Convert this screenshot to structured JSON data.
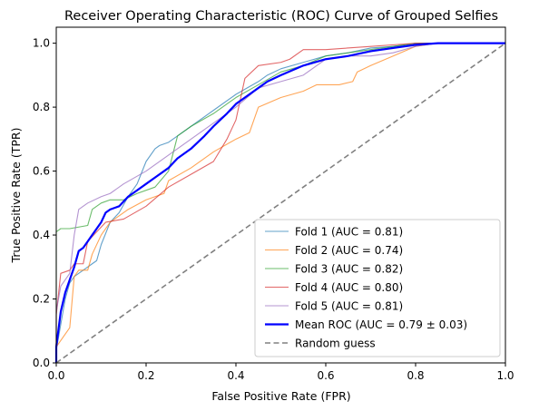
{
  "chart_data": {
    "type": "line",
    "title": "Receiver Operating Characteristic (ROC) Curve of Grouped Selfies",
    "xlabel": "False Positive Rate (FPR)",
    "ylabel": "True Positive Rate (TPR)",
    "xlim": [
      0,
      1.0
    ],
    "ylim": [
      0,
      1.05
    ],
    "xticks": [
      0.0,
      0.2,
      0.4,
      0.6,
      0.8,
      1.0
    ],
    "yticks": [
      0.0,
      0.2,
      0.4,
      0.6,
      0.8,
      1.0
    ],
    "xtick_labels": [
      "0.0",
      "0.2",
      "0.4",
      "0.6",
      "0.8",
      "1.0"
    ],
    "ytick_labels": [
      "0.0",
      "0.2",
      "0.4",
      "0.6",
      "0.8",
      "1.0"
    ],
    "grid": false,
    "legend_position": "lower-right",
    "series": [
      {
        "name": "Fold 1 (AUC = 0.81)",
        "color": "#1f77b4",
        "style": "thin",
        "points": [
          [
            0,
            0
          ],
          [
            0,
            0.04
          ],
          [
            0.01,
            0.12
          ],
          [
            0.02,
            0.2
          ],
          [
            0.03,
            0.25
          ],
          [
            0.04,
            0.27
          ],
          [
            0.05,
            0.28
          ],
          [
            0.06,
            0.29
          ],
          [
            0.07,
            0.3
          ],
          [
            0.08,
            0.31
          ],
          [
            0.09,
            0.32
          ],
          [
            0.1,
            0.37
          ],
          [
            0.12,
            0.44
          ],
          [
            0.14,
            0.47
          ],
          [
            0.16,
            0.52
          ],
          [
            0.18,
            0.56
          ],
          [
            0.2,
            0.63
          ],
          [
            0.22,
            0.67
          ],
          [
            0.23,
            0.68
          ],
          [
            0.25,
            0.69
          ],
          [
            0.27,
            0.71
          ],
          [
            0.3,
            0.74
          ],
          [
            0.35,
            0.79
          ],
          [
            0.4,
            0.84
          ],
          [
            0.45,
            0.88
          ],
          [
            0.47,
            0.9
          ],
          [
            0.5,
            0.92
          ],
          [
            0.55,
            0.94
          ],
          [
            0.6,
            0.96
          ],
          [
            0.65,
            0.97
          ],
          [
            0.7,
            0.985
          ],
          [
            0.75,
            0.99
          ],
          [
            0.8,
            1.0
          ],
          [
            1,
            1.0
          ]
        ]
      },
      {
        "name": "Fold 2 (AUC = 0.74)",
        "color": "#ff7f0e",
        "style": "thin",
        "points": [
          [
            0,
            0
          ],
          [
            0,
            0.05
          ],
          [
            0.01,
            0.07
          ],
          [
            0.03,
            0.11
          ],
          [
            0.04,
            0.27
          ],
          [
            0.05,
            0.29
          ],
          [
            0.07,
            0.29
          ],
          [
            0.08,
            0.34
          ],
          [
            0.1,
            0.4
          ],
          [
            0.12,
            0.44
          ],
          [
            0.16,
            0.48
          ],
          [
            0.2,
            0.51
          ],
          [
            0.24,
            0.53
          ],
          [
            0.25,
            0.57
          ],
          [
            0.3,
            0.61
          ],
          [
            0.35,
            0.66
          ],
          [
            0.4,
            0.7
          ],
          [
            0.43,
            0.72
          ],
          [
            0.45,
            0.8
          ],
          [
            0.5,
            0.83
          ],
          [
            0.55,
            0.85
          ],
          [
            0.58,
            0.87
          ],
          [
            0.63,
            0.87
          ],
          [
            0.66,
            0.88
          ],
          [
            0.67,
            0.91
          ],
          [
            0.7,
            0.93
          ],
          [
            0.75,
            0.96
          ],
          [
            0.8,
            0.99
          ],
          [
            0.85,
            1.0
          ],
          [
            1,
            1.0
          ]
        ]
      },
      {
        "name": "Fold 3 (AUC = 0.82)",
        "color": "#2ca02c",
        "style": "thin",
        "points": [
          [
            0,
            0
          ],
          [
            0,
            0.41
          ],
          [
            0.01,
            0.42
          ],
          [
            0.03,
            0.42
          ],
          [
            0.07,
            0.43
          ],
          [
            0.08,
            0.48
          ],
          [
            0.1,
            0.5
          ],
          [
            0.12,
            0.51
          ],
          [
            0.15,
            0.51
          ],
          [
            0.18,
            0.53
          ],
          [
            0.22,
            0.55
          ],
          [
            0.25,
            0.6
          ],
          [
            0.27,
            0.71
          ],
          [
            0.3,
            0.74
          ],
          [
            0.35,
            0.78
          ],
          [
            0.4,
            0.83
          ],
          [
            0.45,
            0.87
          ],
          [
            0.5,
            0.91
          ],
          [
            0.55,
            0.93
          ],
          [
            0.6,
            0.96
          ],
          [
            0.65,
            0.97
          ],
          [
            0.7,
            0.98
          ],
          [
            0.8,
            1.0
          ],
          [
            1,
            1.0
          ]
        ]
      },
      {
        "name": "Fold 4 (AUC = 0.80)",
        "color": "#d62728",
        "style": "thin",
        "points": [
          [
            0,
            0
          ],
          [
            0,
            0.15
          ],
          [
            0.01,
            0.28
          ],
          [
            0.03,
            0.29
          ],
          [
            0.04,
            0.31
          ],
          [
            0.06,
            0.31
          ],
          [
            0.07,
            0.38
          ],
          [
            0.09,
            0.41
          ],
          [
            0.11,
            0.44
          ],
          [
            0.15,
            0.45
          ],
          [
            0.2,
            0.49
          ],
          [
            0.25,
            0.55
          ],
          [
            0.3,
            0.59
          ],
          [
            0.35,
            0.63
          ],
          [
            0.38,
            0.7
          ],
          [
            0.4,
            0.76
          ],
          [
            0.42,
            0.89
          ],
          [
            0.45,
            0.93
          ],
          [
            0.5,
            0.94
          ],
          [
            0.52,
            0.95
          ],
          [
            0.55,
            0.98
          ],
          [
            0.6,
            0.98
          ],
          [
            0.7,
            0.99
          ],
          [
            0.8,
            1.0
          ],
          [
            1,
            1.0
          ]
        ]
      },
      {
        "name": "Fold 5 (AUC = 0.81)",
        "color": "#9467bd",
        "style": "thin",
        "points": [
          [
            0,
            0
          ],
          [
            0,
            0.16
          ],
          [
            0.01,
            0.24
          ],
          [
            0.03,
            0.28
          ],
          [
            0.04,
            0.4
          ],
          [
            0.05,
            0.48
          ],
          [
            0.06,
            0.49
          ],
          [
            0.07,
            0.5
          ],
          [
            0.1,
            0.52
          ],
          [
            0.12,
            0.53
          ],
          [
            0.15,
            0.56
          ],
          [
            0.2,
            0.6
          ],
          [
            0.25,
            0.65
          ],
          [
            0.3,
            0.7
          ],
          [
            0.35,
            0.75
          ],
          [
            0.4,
            0.8
          ],
          [
            0.45,
            0.86
          ],
          [
            0.5,
            0.88
          ],
          [
            0.55,
            0.9
          ],
          [
            0.6,
            0.95
          ],
          [
            0.65,
            0.96
          ],
          [
            0.7,
            0.96
          ],
          [
            0.75,
            0.97
          ],
          [
            0.8,
            0.99
          ],
          [
            0.85,
            1.0
          ],
          [
            1,
            1.0
          ]
        ]
      },
      {
        "name": "Mean ROC (AUC = 0.79 ± 0.03)",
        "color": "#0000ff",
        "style": "bold",
        "points": [
          [
            0,
            0
          ],
          [
            0,
            0.05
          ],
          [
            0.01,
            0.16
          ],
          [
            0.02,
            0.22
          ],
          [
            0.03,
            0.26
          ],
          [
            0.04,
            0.3
          ],
          [
            0.05,
            0.35
          ],
          [
            0.06,
            0.36
          ],
          [
            0.07,
            0.38
          ],
          [
            0.08,
            0.4
          ],
          [
            0.09,
            0.42
          ],
          [
            0.1,
            0.44
          ],
          [
            0.11,
            0.47
          ],
          [
            0.12,
            0.48
          ],
          [
            0.14,
            0.49
          ],
          [
            0.16,
            0.52
          ],
          [
            0.18,
            0.54
          ],
          [
            0.2,
            0.56
          ],
          [
            0.22,
            0.58
          ],
          [
            0.25,
            0.61
          ],
          [
            0.27,
            0.64
          ],
          [
            0.3,
            0.67
          ],
          [
            0.33,
            0.71
          ],
          [
            0.35,
            0.74
          ],
          [
            0.38,
            0.78
          ],
          [
            0.4,
            0.81
          ],
          [
            0.42,
            0.83
          ],
          [
            0.45,
            0.86
          ],
          [
            0.47,
            0.88
          ],
          [
            0.5,
            0.9
          ],
          [
            0.55,
            0.93
          ],
          [
            0.6,
            0.95
          ],
          [
            0.65,
            0.96
          ],
          [
            0.7,
            0.975
          ],
          [
            0.75,
            0.985
          ],
          [
            0.8,
            0.995
          ],
          [
            0.85,
            1.0
          ],
          [
            1,
            1.0
          ]
        ]
      },
      {
        "name": "Random guess",
        "color": "#808080",
        "style": "dashed",
        "points": [
          [
            0,
            0
          ],
          [
            1,
            1
          ]
        ]
      }
    ]
  }
}
